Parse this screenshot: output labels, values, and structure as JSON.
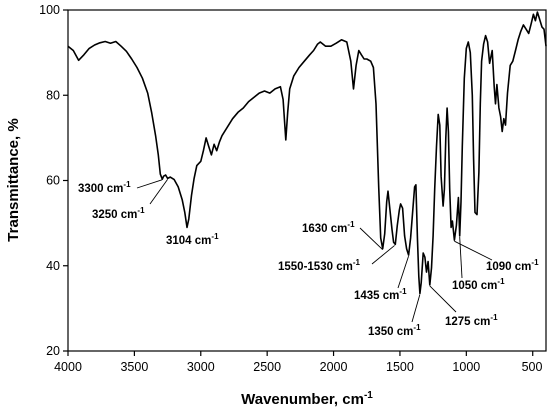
{
  "chart_data": {
    "type": "line",
    "title": "",
    "xlabel": "Wavenumber, cm",
    "xlabel_sup": "-1",
    "ylabel": "Transmittance, %",
    "xlim": [
      4000,
      400
    ],
    "ylim": [
      20,
      100
    ],
    "x_reversed": true,
    "grid": false,
    "legend": "none",
    "line_color": "#000000",
    "x_ticks": [
      "4000",
      "3500",
      "3000",
      "2500",
      "2000",
      "1500",
      "1000",
      "500"
    ],
    "y_ticks": [
      "20",
      "40",
      "60",
      "80",
      "100"
    ],
    "series": [
      {
        "points": [
          [
            4000,
            91.5
          ],
          [
            3960,
            90.5
          ],
          [
            3920,
            88.2
          ],
          [
            3880,
            89.5
          ],
          [
            3840,
            91.0
          ],
          [
            3800,
            91.8
          ],
          [
            3760,
            92.3
          ],
          [
            3720,
            92.6
          ],
          [
            3680,
            92.2
          ],
          [
            3640,
            92.6
          ],
          [
            3600,
            91.5
          ],
          [
            3560,
            90.3
          ],
          [
            3520,
            88.5
          ],
          [
            3480,
            86.5
          ],
          [
            3440,
            84.0
          ],
          [
            3400,
            80.5
          ],
          [
            3370,
            76.0
          ],
          [
            3340,
            70.5
          ],
          [
            3320,
            66.0
          ],
          [
            3305,
            61.5
          ],
          [
            3290,
            60.3
          ],
          [
            3280,
            61.0
          ],
          [
            3265,
            61.3
          ],
          [
            3250,
            60.5
          ],
          [
            3230,
            60.8
          ],
          [
            3200,
            60.2
          ],
          [
            3170,
            58.5
          ],
          [
            3140,
            55.5
          ],
          [
            3120,
            52.5
          ],
          [
            3104,
            49.0
          ],
          [
            3090,
            51.0
          ],
          [
            3070,
            56.5
          ],
          [
            3050,
            60.5
          ],
          [
            3030,
            63.5
          ],
          [
            3000,
            64.5
          ],
          [
            2980,
            67.0
          ],
          [
            2960,
            70.0
          ],
          [
            2940,
            68.0
          ],
          [
            2920,
            66.0
          ],
          [
            2900,
            68.5
          ],
          [
            2880,
            67.0
          ],
          [
            2860,
            69.0
          ],
          [
            2840,
            70.5
          ],
          [
            2800,
            72.5
          ],
          [
            2760,
            74.5
          ],
          [
            2720,
            76.0
          ],
          [
            2680,
            77.0
          ],
          [
            2640,
            78.5
          ],
          [
            2600,
            79.5
          ],
          [
            2560,
            80.5
          ],
          [
            2520,
            81.0
          ],
          [
            2480,
            80.5
          ],
          [
            2440,
            81.5
          ],
          [
            2400,
            82.0
          ],
          [
            2380,
            79.0
          ],
          [
            2360,
            69.5
          ],
          [
            2345,
            76.0
          ],
          [
            2330,
            81.5
          ],
          [
            2300,
            84.5
          ],
          [
            2260,
            86.5
          ],
          [
            2220,
            88.0
          ],
          [
            2180,
            89.5
          ],
          [
            2150,
            90.5
          ],
          [
            2120,
            92.0
          ],
          [
            2100,
            92.5
          ],
          [
            2060,
            91.5
          ],
          [
            2020,
            91.5
          ],
          [
            1980,
            92.2
          ],
          [
            1940,
            93.0
          ],
          [
            1900,
            92.5
          ],
          [
            1870,
            88.0
          ],
          [
            1850,
            81.5
          ],
          [
            1830,
            87.0
          ],
          [
            1810,
            90.5
          ],
          [
            1790,
            89.5
          ],
          [
            1770,
            88.5
          ],
          [
            1750,
            88.5
          ],
          [
            1720,
            88.0
          ],
          [
            1700,
            86.5
          ],
          [
            1680,
            78.0
          ],
          [
            1660,
            58.5
          ],
          [
            1645,
            46.5
          ],
          [
            1630,
            44.0
          ],
          [
            1615,
            47.5
          ],
          [
            1600,
            55.0
          ],
          [
            1590,
            57.5
          ],
          [
            1575,
            53.0
          ],
          [
            1560,
            48.5
          ],
          [
            1548,
            45.5
          ],
          [
            1535,
            45.0
          ],
          [
            1520,
            49.5
          ],
          [
            1505,
            53.0
          ],
          [
            1495,
            54.5
          ],
          [
            1480,
            53.5
          ],
          [
            1465,
            47.0
          ],
          [
            1450,
            44.0
          ],
          [
            1435,
            42.5
          ],
          [
            1420,
            46.5
          ],
          [
            1405,
            52.5
          ],
          [
            1390,
            58.5
          ],
          [
            1380,
            59.0
          ],
          [
            1368,
            46.0
          ],
          [
            1358,
            37.5
          ],
          [
            1350,
            33.5
          ],
          [
            1340,
            36.0
          ],
          [
            1325,
            43.0
          ],
          [
            1312,
            42.0
          ],
          [
            1300,
            38.5
          ],
          [
            1288,
            41.0
          ],
          [
            1275,
            35.5
          ],
          [
            1262,
            39.5
          ],
          [
            1250,
            47.0
          ],
          [
            1238,
            58.0
          ],
          [
            1225,
            68.0
          ],
          [
            1212,
            75.5
          ],
          [
            1200,
            73.0
          ],
          [
            1190,
            61.0
          ],
          [
            1175,
            54.0
          ],
          [
            1165,
            58.0
          ],
          [
            1155,
            70.0
          ],
          [
            1145,
            77.0
          ],
          [
            1135,
            71.5
          ],
          [
            1125,
            58.0
          ],
          [
            1115,
            49.0
          ],
          [
            1105,
            50.5
          ],
          [
            1090,
            46.0
          ],
          [
            1075,
            49.5
          ],
          [
            1060,
            56.0
          ],
          [
            1050,
            47.0
          ],
          [
            1040,
            55.0
          ],
          [
            1030,
            68.0
          ],
          [
            1015,
            84.0
          ],
          [
            1000,
            91.0
          ],
          [
            985,
            92.5
          ],
          [
            970,
            90.0
          ],
          [
            955,
            80.0
          ],
          [
            945,
            65.0
          ],
          [
            935,
            52.5
          ],
          [
            920,
            52.0
          ],
          [
            905,
            62.0
          ],
          [
            895,
            78.0
          ],
          [
            885,
            88.0
          ],
          [
            870,
            92.0
          ],
          [
            855,
            94.0
          ],
          [
            840,
            92.5
          ],
          [
            825,
            87.5
          ],
          [
            815,
            89.0
          ],
          [
            805,
            90.5
          ],
          [
            790,
            82.0
          ],
          [
            780,
            78.0
          ],
          [
            770,
            82.5
          ],
          [
            755,
            77.0
          ],
          [
            742,
            75.0
          ],
          [
            730,
            71.5
          ],
          [
            718,
            74.5
          ],
          [
            705,
            73.0
          ],
          [
            690,
            80.5
          ],
          [
            670,
            87.0
          ],
          [
            650,
            88.0
          ],
          [
            630,
            90.5
          ],
          [
            610,
            93.0
          ],
          [
            590,
            95.0
          ],
          [
            570,
            96.5
          ],
          [
            550,
            95.5
          ],
          [
            530,
            94.5
          ],
          [
            510,
            97.0
          ],
          [
            495,
            99.0
          ],
          [
            480,
            97.5
          ],
          [
            465,
            99.5
          ],
          [
            450,
            98.0
          ],
          [
            430,
            96.0
          ],
          [
            415,
            95.5
          ],
          [
            400,
            91.5
          ]
        ]
      }
    ],
    "annotations": [
      {
        "text": "3300 cm",
        "sup": "-1",
        "anchor": [
          3292,
          60.4
        ]
      },
      {
        "text": "3250 cm",
        "sup": "-1",
        "anchor": [
          3250,
          60.5
        ]
      },
      {
        "text": "3104 cm",
        "sup": "-1",
        "anchor": [
          3104,
          49.0
        ]
      },
      {
        "text": "1630 cm",
        "sup": "-1",
        "anchor": [
          1630,
          44.0
        ]
      },
      {
        "text": "1550-1530 cm",
        "sup": "-1",
        "anchor": [
          1540,
          45.0
        ]
      },
      {
        "text": "1435 cm",
        "sup": "-1",
        "anchor": [
          1435,
          42.5
        ]
      },
      {
        "text": "1350 cm",
        "sup": "-1",
        "anchor": [
          1350,
          33.5
        ]
      },
      {
        "text": "1275 cm",
        "sup": "-1",
        "anchor": [
          1275,
          35.5
        ]
      },
      {
        "text": "1050 cm",
        "sup": "-1",
        "anchor": [
          1050,
          47.0
        ]
      },
      {
        "text": "1090 cm",
        "sup": "-1",
        "anchor": [
          1090,
          46.0
        ]
      }
    ]
  }
}
